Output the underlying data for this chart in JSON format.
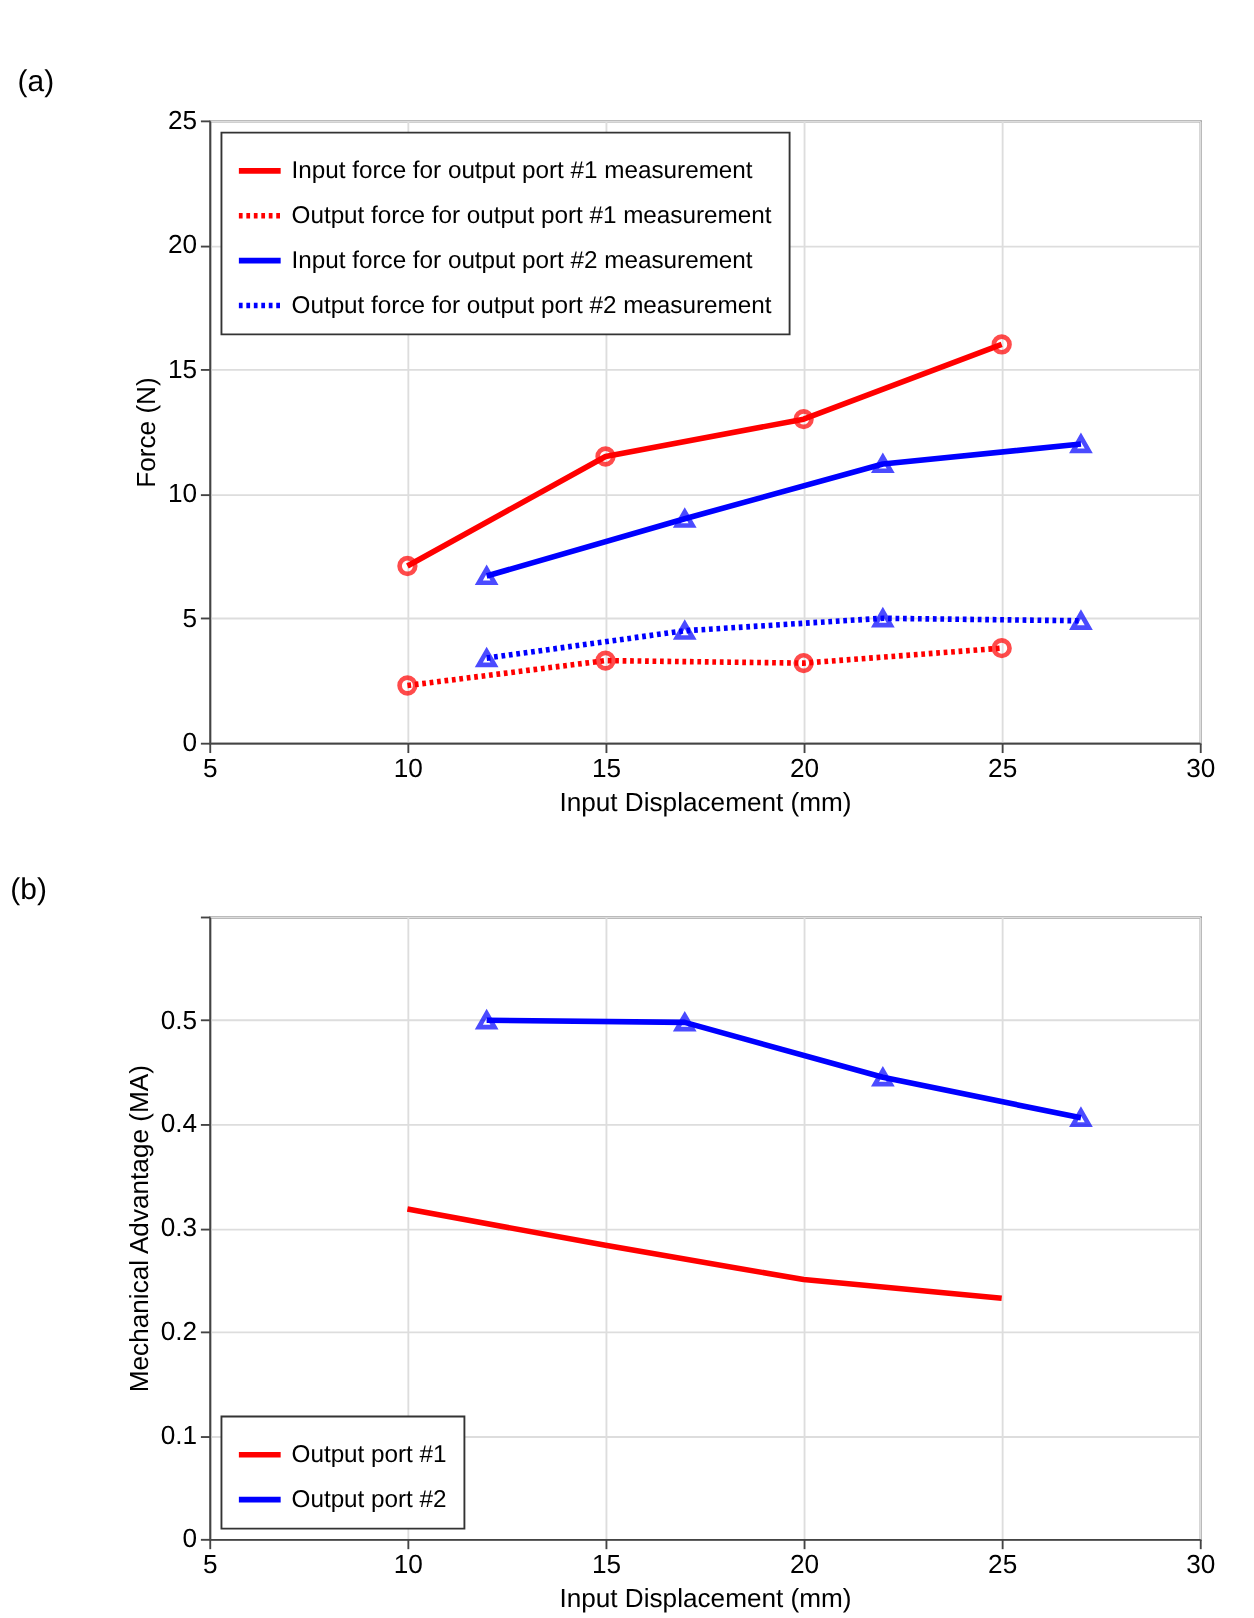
{
  "chart_data": [
    {
      "type": "line",
      "title": "(a)",
      "xlabel": "Input Displacement (mm)",
      "ylabel": "Force (N)",
      "xlim": [
        5,
        30
      ],
      "xticks": [
        5,
        10,
        15,
        20,
        25,
        30
      ],
      "ylim": [
        0,
        25
      ],
      "yticks": [
        0,
        5,
        10,
        15,
        20,
        25
      ],
      "grid": true,
      "legend": "top left",
      "series": [
        {
          "name": "Input force for output port #1 measurement",
          "color": "#ff0000",
          "line_style": "solid",
          "marker": "circle",
          "x": [
            10,
            15,
            20,
            25
          ],
          "values": [
            7.1,
            11.5,
            13.0,
            16.0
          ]
        },
        {
          "name": "Output force for output port #1 measurement",
          "color": "#ff0000",
          "line_style": "dotted",
          "marker": "circle",
          "x": [
            10,
            15,
            20,
            25
          ],
          "values": [
            2.3,
            3.3,
            3.2,
            3.8
          ]
        },
        {
          "name": "Input force for output port #2 measurement",
          "color": "#0000ff",
          "line_style": "solid",
          "marker": "triangle",
          "x": [
            12,
            17,
            22,
            27
          ],
          "values": [
            6.7,
            9.0,
            11.2,
            12.0
          ]
        },
        {
          "name": "Output force for output port #2 measurement",
          "color": "#0000ff",
          "line_style": "dotted",
          "marker": "triangle",
          "x": [
            12,
            17,
            22,
            27
          ],
          "values": [
            3.4,
            4.5,
            5.0,
            4.9
          ]
        }
      ]
    },
    {
      "type": "line",
      "title": "(b)",
      "xlabel": "Input Displacement (mm)",
      "ylabel": "Mechanical Advantage (MA)",
      "xlim": [
        5,
        30
      ],
      "xticks": [
        5,
        10,
        15,
        20,
        25,
        30
      ],
      "ylim": [
        0,
        0.6
      ],
      "yticks": [
        0,
        0.1,
        0.2,
        0.3,
        0.4,
        0.5,
        {
          "value": 0.6,
          "label": null
        }
      ],
      "grid": true,
      "legend": "bottom left",
      "series": [
        {
          "name": "Output port #1",
          "color": "#ff0000",
          "line_style": "solid",
          "marker": "none",
          "x": [
            10,
            15,
            20,
            25
          ],
          "values": [
            0.318,
            0.283,
            0.25,
            0.232
          ]
        },
        {
          "name": "Output port #2",
          "color": "#0000ff",
          "line_style": "solid",
          "marker": "triangle",
          "x": [
            12,
            17,
            22,
            27
          ],
          "values": [
            0.5,
            0.498,
            0.445,
            0.406
          ]
        }
      ]
    }
  ]
}
